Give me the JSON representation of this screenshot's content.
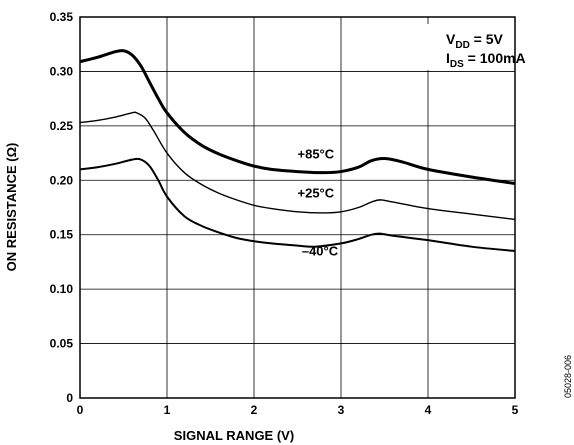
{
  "chart_data": {
    "type": "line",
    "title": "",
    "xlabel": "SIGNAL RANGE (V)",
    "ylabel": "ON RESISTANCE (Ω)",
    "xlim": [
      0,
      5
    ],
    "ylim": [
      0,
      0.35
    ],
    "x_ticks": [
      "0",
      "1",
      "2",
      "3",
      "4",
      "5"
    ],
    "y_ticks": [
      "0",
      "0.05",
      "0.10",
      "0.15",
      "0.20",
      "0.25",
      "0.30",
      "0.35"
    ],
    "grid": true,
    "conditions": {
      "vdd_main": "V",
      "vdd_sub": "DD",
      "vdd_value": " = 5V",
      "ids_main": "I",
      "ids_sub": "DS",
      "ids_value": " = 100mA"
    },
    "figure_id": "05028-006",
    "series": [
      {
        "name": "+85°C",
        "stroke_width": 3,
        "points": [
          [
            0,
            0.309
          ],
          [
            0.2,
            0.313
          ],
          [
            0.4,
            0.318
          ],
          [
            0.5,
            0.319
          ],
          [
            0.6,
            0.315
          ],
          [
            0.7,
            0.305
          ],
          [
            0.8,
            0.29
          ],
          [
            0.9,
            0.275
          ],
          [
            1.0,
            0.262
          ],
          [
            1.2,
            0.244
          ],
          [
            1.4,
            0.232
          ],
          [
            1.6,
            0.224
          ],
          [
            1.8,
            0.218
          ],
          [
            2.0,
            0.213
          ],
          [
            2.2,
            0.21
          ],
          [
            2.5,
            0.208
          ],
          [
            2.8,
            0.207
          ],
          [
            3.0,
            0.208
          ],
          [
            3.2,
            0.212
          ],
          [
            3.35,
            0.218
          ],
          [
            3.5,
            0.22
          ],
          [
            3.7,
            0.217
          ],
          [
            4.0,
            0.21
          ],
          [
            4.5,
            0.203
          ],
          [
            5.0,
            0.197
          ]
        ]
      },
      {
        "name": "+25°C",
        "stroke_width": 1.4,
        "points": [
          [
            0,
            0.253
          ],
          [
            0.2,
            0.255
          ],
          [
            0.4,
            0.258
          ],
          [
            0.6,
            0.262
          ],
          [
            0.65,
            0.262
          ],
          [
            0.75,
            0.257
          ],
          [
            0.85,
            0.245
          ],
          [
            1.0,
            0.225
          ],
          [
            1.2,
            0.207
          ],
          [
            1.4,
            0.196
          ],
          [
            1.6,
            0.188
          ],
          [
            1.8,
            0.182
          ],
          [
            2.0,
            0.177
          ],
          [
            2.2,
            0.174
          ],
          [
            2.5,
            0.171
          ],
          [
            2.8,
            0.17
          ],
          [
            3.0,
            0.171
          ],
          [
            3.2,
            0.175
          ],
          [
            3.35,
            0.18
          ],
          [
            3.45,
            0.182
          ],
          [
            3.6,
            0.18
          ],
          [
            4.0,
            0.174
          ],
          [
            4.5,
            0.169
          ],
          [
            5.0,
            0.164
          ]
        ]
      },
      {
        "name": "–40°C",
        "stroke_width": 2,
        "points": [
          [
            0,
            0.21
          ],
          [
            0.2,
            0.212
          ],
          [
            0.4,
            0.215
          ],
          [
            0.6,
            0.219
          ],
          [
            0.7,
            0.219
          ],
          [
            0.8,
            0.213
          ],
          [
            0.9,
            0.2
          ],
          [
            1.0,
            0.185
          ],
          [
            1.2,
            0.167
          ],
          [
            1.4,
            0.158
          ],
          [
            1.6,
            0.152
          ],
          [
            1.8,
            0.147
          ],
          [
            2.0,
            0.144
          ],
          [
            2.2,
            0.142
          ],
          [
            2.5,
            0.14
          ],
          [
            2.7,
            0.139
          ],
          [
            3.0,
            0.142
          ],
          [
            3.2,
            0.146
          ],
          [
            3.35,
            0.15
          ],
          [
            3.45,
            0.151
          ],
          [
            3.6,
            0.149
          ],
          [
            4.0,
            0.145
          ],
          [
            4.5,
            0.139
          ],
          [
            5.0,
            0.135
          ]
        ]
      }
    ],
    "annotations": [
      {
        "text": "+85°C",
        "x": 2.5,
        "y": 0.22
      },
      {
        "text": "+25°C",
        "x": 2.5,
        "y": 0.184
      },
      {
        "text": "–40°C",
        "x": 2.55,
        "y": 0.131
      }
    ]
  }
}
